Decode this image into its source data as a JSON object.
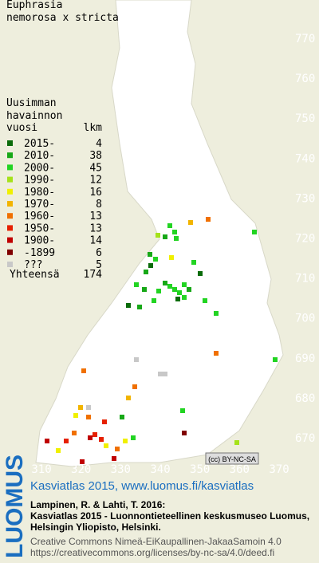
{
  "title": [
    "Euphrasia",
    "nemorosa x stricta"
  ],
  "legend": {
    "heading": [
      "Uusimman",
      "havainnon"
    ],
    "col1": "vuosi",
    "col2": "lkm",
    "rows": [
      {
        "label": "2015-",
        "count": 4,
        "color": "#0a6b0a"
      },
      {
        "label": "2010-",
        "count": 38,
        "color": "#17a817"
      },
      {
        "label": "2000-",
        "count": 45,
        "color": "#22d422"
      },
      {
        "label": "1990-",
        "count": 12,
        "color": "#a5e21a"
      },
      {
        "label": "1980-",
        "count": 16,
        "color": "#f0f000"
      },
      {
        "label": "1970-",
        "count": 8,
        "color": "#f2b400"
      },
      {
        "label": "1960-",
        "count": 13,
        "color": "#f07000"
      },
      {
        "label": "1950-",
        "count": 13,
        "color": "#e62000"
      },
      {
        "label": "1900-",
        "count": 14,
        "color": "#c00000"
      },
      {
        "label": "-1899",
        "count": 6,
        "color": "#800000"
      },
      {
        "label": "???",
        "count": 5,
        "color": "#c8c8c8"
      }
    ],
    "total_label": "Yhteensä",
    "total": 174
  },
  "yticks": [
    770,
    760,
    750,
    740,
    730,
    720,
    710,
    700,
    690,
    680,
    670
  ],
  "xticks": [
    310,
    320,
    330,
    340,
    350,
    360,
    370
  ],
  "license_badge": "(cc) BY-NC-SA",
  "footer": {
    "brand": "LUOMUS",
    "link": "Kasviatlas 2015, www.luomus.fi/kasviatlas",
    "citation": [
      "Lampinen, R. & Lahti, T. 2016:",
      "Kasviatlas 2015 - Luonnontieteellinen keskusmuseo Luomus,",
      "Helsingin Yliopisto, Helsinki."
    ],
    "license": [
      "Creative Commons Nimeä-EiKaupallinen-JakaaSamoin 4.0",
      "https://creativecommons.org/licenses/by-nc-sa/4.0/deed.fi"
    ]
  }
}
